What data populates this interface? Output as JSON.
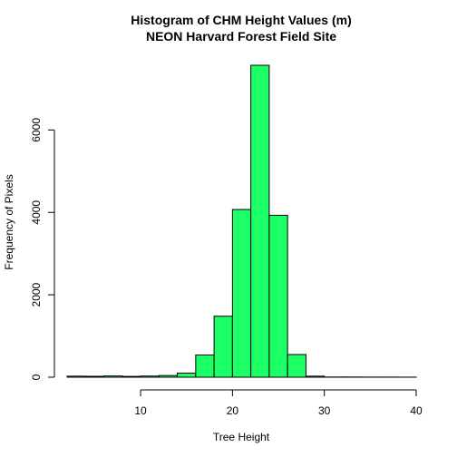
{
  "chart_data": {
    "type": "bar",
    "title": "Histogram of CHM Height Values (m)",
    "subtitle": "NEON Harvard Forest Field Site",
    "xlabel": "Tree Height",
    "ylabel": "Frequency of Pixels",
    "bar_color": "#1cff66",
    "bin_edges": [
      2,
      4,
      6,
      8,
      10,
      12,
      14,
      16,
      18,
      20,
      22,
      24,
      26,
      28,
      30,
      32,
      34,
      36,
      38,
      40
    ],
    "values": [
      25,
      22,
      30,
      20,
      28,
      40,
      100,
      540,
      1480,
      4070,
      7570,
      3930,
      550,
      25,
      5,
      5,
      3,
      3,
      2
    ],
    "xlim": [
      2,
      40
    ],
    "ylim": [
      0,
      7570
    ],
    "x_ticks": [
      10,
      20,
      30,
      40
    ],
    "x_tick_labels": [
      "10",
      "20",
      "30",
      "40"
    ],
    "y_ticks": [
      0,
      2000,
      4000,
      6000
    ],
    "y_tick_labels": [
      "0",
      "2000",
      "4000",
      "6000"
    ],
    "grid": false,
    "legend": "none"
  }
}
